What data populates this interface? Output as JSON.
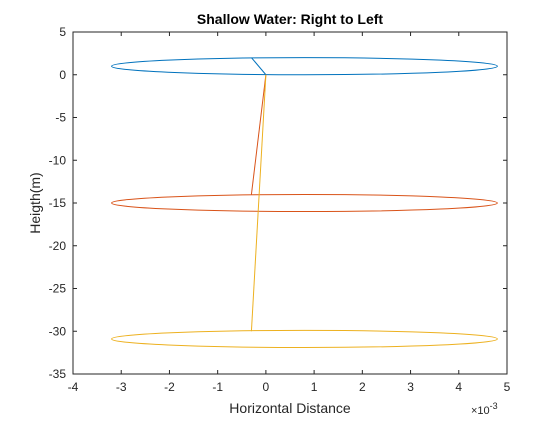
{
  "chart_data": {
    "type": "line",
    "title": "Shallow Water: Right to Left",
    "xlabel": "Horizontal Distance",
    "ylabel": "Heigth(m)",
    "x_exponent_base": "×10",
    "x_exponent_power": "-3",
    "xlim": [
      -4,
      5
    ],
    "ylim": [
      -35,
      5
    ],
    "x_ticks": [
      -4,
      -3,
      -2,
      -1,
      0,
      1,
      2,
      3,
      4,
      5
    ],
    "y_ticks": [
      5,
      0,
      -5,
      -10,
      -15,
      -20,
      -25,
      -30,
      -35
    ],
    "x_scale": 0.001,
    "grid": false,
    "series": [
      {
        "color": "#0072BD",
        "ellipse": {
          "cx": 0.8,
          "cy": 1.0,
          "rx": 4.0,
          "ry": 1.0
        },
        "line": [
          [
            -0.3,
            2.0
          ],
          [
            0.0,
            0.0
          ]
        ]
      },
      {
        "color": "#D95319",
        "ellipse": {
          "cx": 0.8,
          "cy": -15.0,
          "rx": 4.0,
          "ry": 1.0
        },
        "line": [
          [
            -0.3,
            -14.0
          ],
          [
            0.0,
            0.0
          ]
        ]
      },
      {
        "color": "#EDB120",
        "ellipse": {
          "cx": 0.8,
          "cy": -30.9,
          "rx": 4.0,
          "ry": 1.0
        },
        "line": [
          [
            -0.3,
            -30.0
          ],
          [
            0.0,
            0.0
          ]
        ]
      }
    ]
  }
}
